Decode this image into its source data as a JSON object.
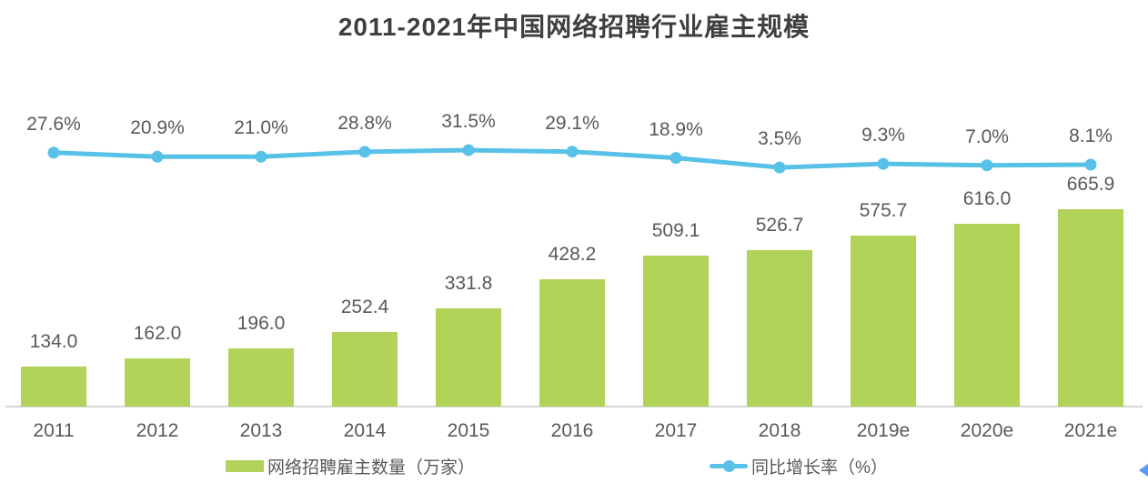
{
  "title": "2011-2021年中国网络招聘行业雇主规模",
  "colors": {
    "bar": "#b2d35a",
    "line": "#58c1e8",
    "title_text": "#3f3f3f",
    "label_text": "#595959",
    "axis_line": "#d6d6d6",
    "edge_arrow": "#5b9bf5"
  },
  "chart_data": {
    "type": "bar",
    "combo": "bar+line",
    "title": "2011-2021年中国网络招聘行业雇主规模",
    "categories": [
      "2011",
      "2012",
      "2013",
      "2014",
      "2015",
      "2016",
      "2017",
      "2018",
      "2019e",
      "2020e",
      "2021e"
    ],
    "series": [
      {
        "name": "网络招聘雇主数量（万家）",
        "type": "bar",
        "unit": "万家",
        "values": [
          134.0,
          162.0,
          196.0,
          252.4,
          331.8,
          428.2,
          509.1,
          526.7,
          575.7,
          616.0,
          665.9
        ],
        "data_labels": [
          "134.0",
          "162.0",
          "196.0",
          "252.4",
          "331.8",
          "428.2",
          "509.1",
          "526.7",
          "575.7",
          "616.0",
          "665.9"
        ],
        "color": "#b2d35a"
      },
      {
        "name": "同比增长率（%）",
        "type": "line",
        "unit": "%",
        "values": [
          27.6,
          20.9,
          21.0,
          28.8,
          31.5,
          29.1,
          18.9,
          3.5,
          9.3,
          7.0,
          8.1
        ],
        "data_labels": [
          "27.6%",
          "20.9%",
          "21.0%",
          "28.8%",
          "31.5%",
          "29.1%",
          "18.9%",
          "3.5%",
          "9.3%",
          "7.0%",
          "8.1%"
        ],
        "color": "#58c1e8"
      }
    ],
    "xlabel": "",
    "ylabel": "",
    "grid": false,
    "legend_position": "bottom",
    "value_axis_visible": false
  }
}
